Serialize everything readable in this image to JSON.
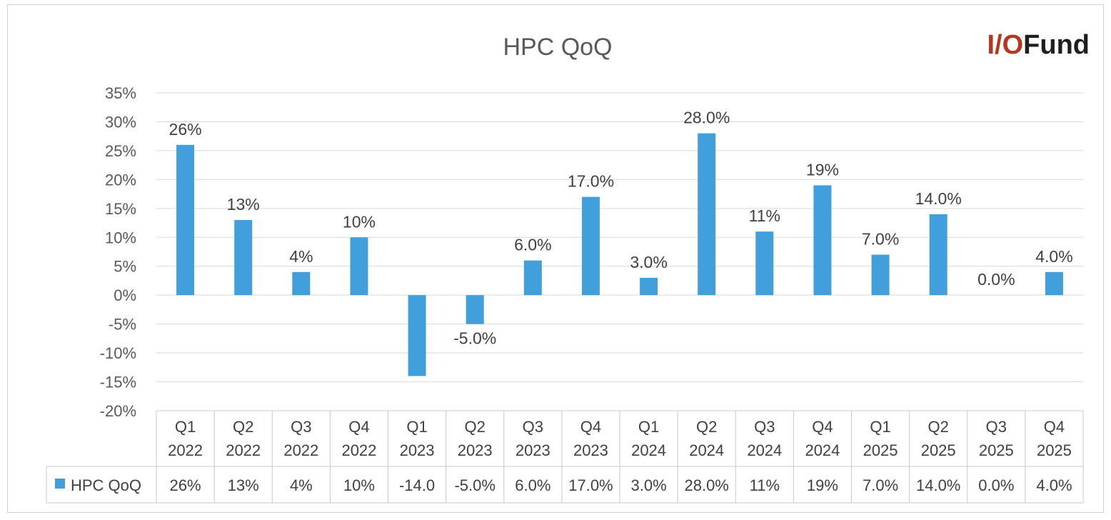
{
  "logo": {
    "prefix": "I/O",
    "suffix": "Fund",
    "prefix_color": "#b5371f",
    "suffix_color": "#1f1f1f"
  },
  "chart_data": {
    "type": "bar",
    "title": "HPC QoQ",
    "categories": [
      [
        "Q1",
        "2022"
      ],
      [
        "Q2",
        "2022"
      ],
      [
        "Q3",
        "2022"
      ],
      [
        "Q4",
        "2022"
      ],
      [
        "Q1",
        "2023"
      ],
      [
        "Q2",
        "2023"
      ],
      [
        "Q3",
        "2023"
      ],
      [
        "Q4",
        "2023"
      ],
      [
        "Q1",
        "2024"
      ],
      [
        "Q2",
        "2024"
      ],
      [
        "Q3",
        "2024"
      ],
      [
        "Q4",
        "2024"
      ],
      [
        "Q1",
        "2025"
      ],
      [
        "Q2",
        "2025"
      ],
      [
        "Q3",
        "2025"
      ],
      [
        "Q4",
        "2025"
      ]
    ],
    "series": [
      {
        "name": "HPC QoQ",
        "color": "#41a0dc",
        "values": [
          26,
          13,
          4,
          10,
          -14,
          -5,
          6,
          17,
          3,
          28,
          11,
          19,
          7,
          14,
          0,
          4
        ],
        "data_labels": [
          "26%",
          "13%",
          "4%",
          "10%",
          "",
          "-5.0%",
          "6.0%",
          "17.0%",
          "3.0%",
          "28.0%",
          "11%",
          "19%",
          "7.0%",
          "14.0%",
          "0.0%",
          "4.0%"
        ],
        "table_labels": [
          "26%",
          "13%",
          "4%",
          "10%",
          "-14.0",
          "-5.0%",
          "6.0%",
          "17.0%",
          "3.0%",
          "28.0%",
          "11%",
          "19%",
          "7.0%",
          "14.0%",
          "0.0%",
          "4.0%"
        ]
      }
    ],
    "ylim": [
      -20,
      35
    ],
    "yticks": [
      35,
      30,
      25,
      20,
      15,
      10,
      5,
      0,
      -5,
      -10,
      -15,
      -20
    ],
    "ytick_labels": [
      "35%",
      "30%",
      "25%",
      "20%",
      "15%",
      "10%",
      "5%",
      "0%",
      "-5%",
      "-10%",
      "-15%",
      "-20%"
    ],
    "grid": true,
    "legend": "bottom-left in data table",
    "data_table": true,
    "xlabel": "",
    "ylabel": ""
  }
}
